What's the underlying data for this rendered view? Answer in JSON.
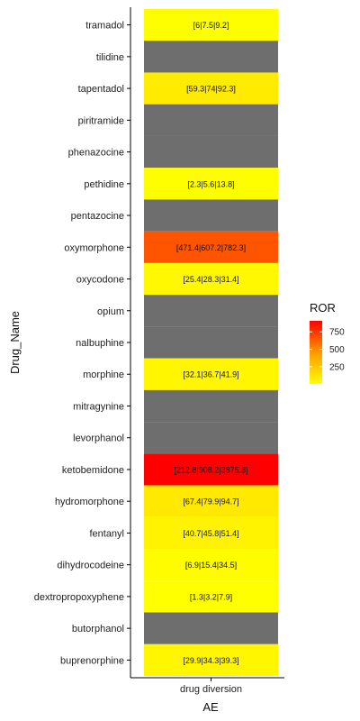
{
  "chart_data": {
    "type": "heatmap",
    "xlabel": "AE",
    "ylabel": "Drug_Name",
    "x_categories": [
      "drug diversion"
    ],
    "y_categories": [
      "tramadol",
      "tilidine",
      "tapentadol",
      "piritramide",
      "phenazocine",
      "pethidine",
      "pentazocine",
      "oxymorphone",
      "oxycodone",
      "opium",
      "nalbuphine",
      "morphine",
      "mitragynine",
      "levorphanol",
      "ketobemidone",
      "hydromorphone",
      "fentanyl",
      "dihydrocodeine",
      "dextropropoxyphene",
      "butorphanol",
      "buprenorphine"
    ],
    "cells": [
      {
        "drug": "tramadol",
        "ae": "drug diversion",
        "ror": 7.5,
        "label": "[6|7.5|9.2]"
      },
      {
        "drug": "tilidine",
        "ae": "drug diversion",
        "ror": null,
        "label": ""
      },
      {
        "drug": "tapentadol",
        "ae": "drug diversion",
        "ror": 74,
        "label": "[59.3|74|92.3]"
      },
      {
        "drug": "piritramide",
        "ae": "drug diversion",
        "ror": null,
        "label": ""
      },
      {
        "drug": "phenazocine",
        "ae": "drug diversion",
        "ror": null,
        "label": ""
      },
      {
        "drug": "pethidine",
        "ae": "drug diversion",
        "ror": 5.6,
        "label": "[2.3|5.6|13.8]"
      },
      {
        "drug": "pentazocine",
        "ae": "drug diversion",
        "ror": null,
        "label": ""
      },
      {
        "drug": "oxymorphone",
        "ae": "drug diversion",
        "ror": 607.2,
        "label": "[471.4|607.2|782.3]"
      },
      {
        "drug": "oxycodone",
        "ae": "drug diversion",
        "ror": 28.3,
        "label": "[25.4|28.3|31.4]"
      },
      {
        "drug": "opium",
        "ae": "drug diversion",
        "ror": null,
        "label": ""
      },
      {
        "drug": "nalbuphine",
        "ae": "drug diversion",
        "ror": null,
        "label": ""
      },
      {
        "drug": "morphine",
        "ae": "drug diversion",
        "ror": 36.7,
        "label": "[32.1|36.7|41.9]"
      },
      {
        "drug": "mitragynine",
        "ae": "drug diversion",
        "ror": null,
        "label": ""
      },
      {
        "drug": "levorphanol",
        "ae": "drug diversion",
        "ror": null,
        "label": ""
      },
      {
        "drug": "ketobemidone",
        "ae": "drug diversion",
        "ror": 908.2,
        "label": "[212.8|908.2|3875.8]"
      },
      {
        "drug": "hydromorphone",
        "ae": "drug diversion",
        "ror": 79.9,
        "label": "[67.4|79.9|94.7]"
      },
      {
        "drug": "fentanyl",
        "ae": "drug diversion",
        "ror": 45.8,
        "label": "[40.7|45.8|51.4]"
      },
      {
        "drug": "dihydrocodeine",
        "ae": "drug diversion",
        "ror": 15.4,
        "label": "[6.9|15.4|34.5]"
      },
      {
        "drug": "dextropropoxyphene",
        "ae": "drug diversion",
        "ror": 3.2,
        "label": "[1.3|3.2|7.9]"
      },
      {
        "drug": "butorphanol",
        "ae": "drug diversion",
        "ror": null,
        "label": ""
      },
      {
        "drug": "buprenorphine",
        "ae": "drug diversion",
        "ror": 34.3,
        "label": "[29.9|34.3|39.3]"
      }
    ],
    "legend": {
      "title": "ROR",
      "ticks": [
        750,
        500,
        250
      ],
      "scale_min": 3.2,
      "scale_max": 908.2,
      "position": "right"
    },
    "colors": {
      "low": "#ffff00",
      "high": "#ff0000",
      "na": "#6e6e6e"
    },
    "grid": false
  }
}
